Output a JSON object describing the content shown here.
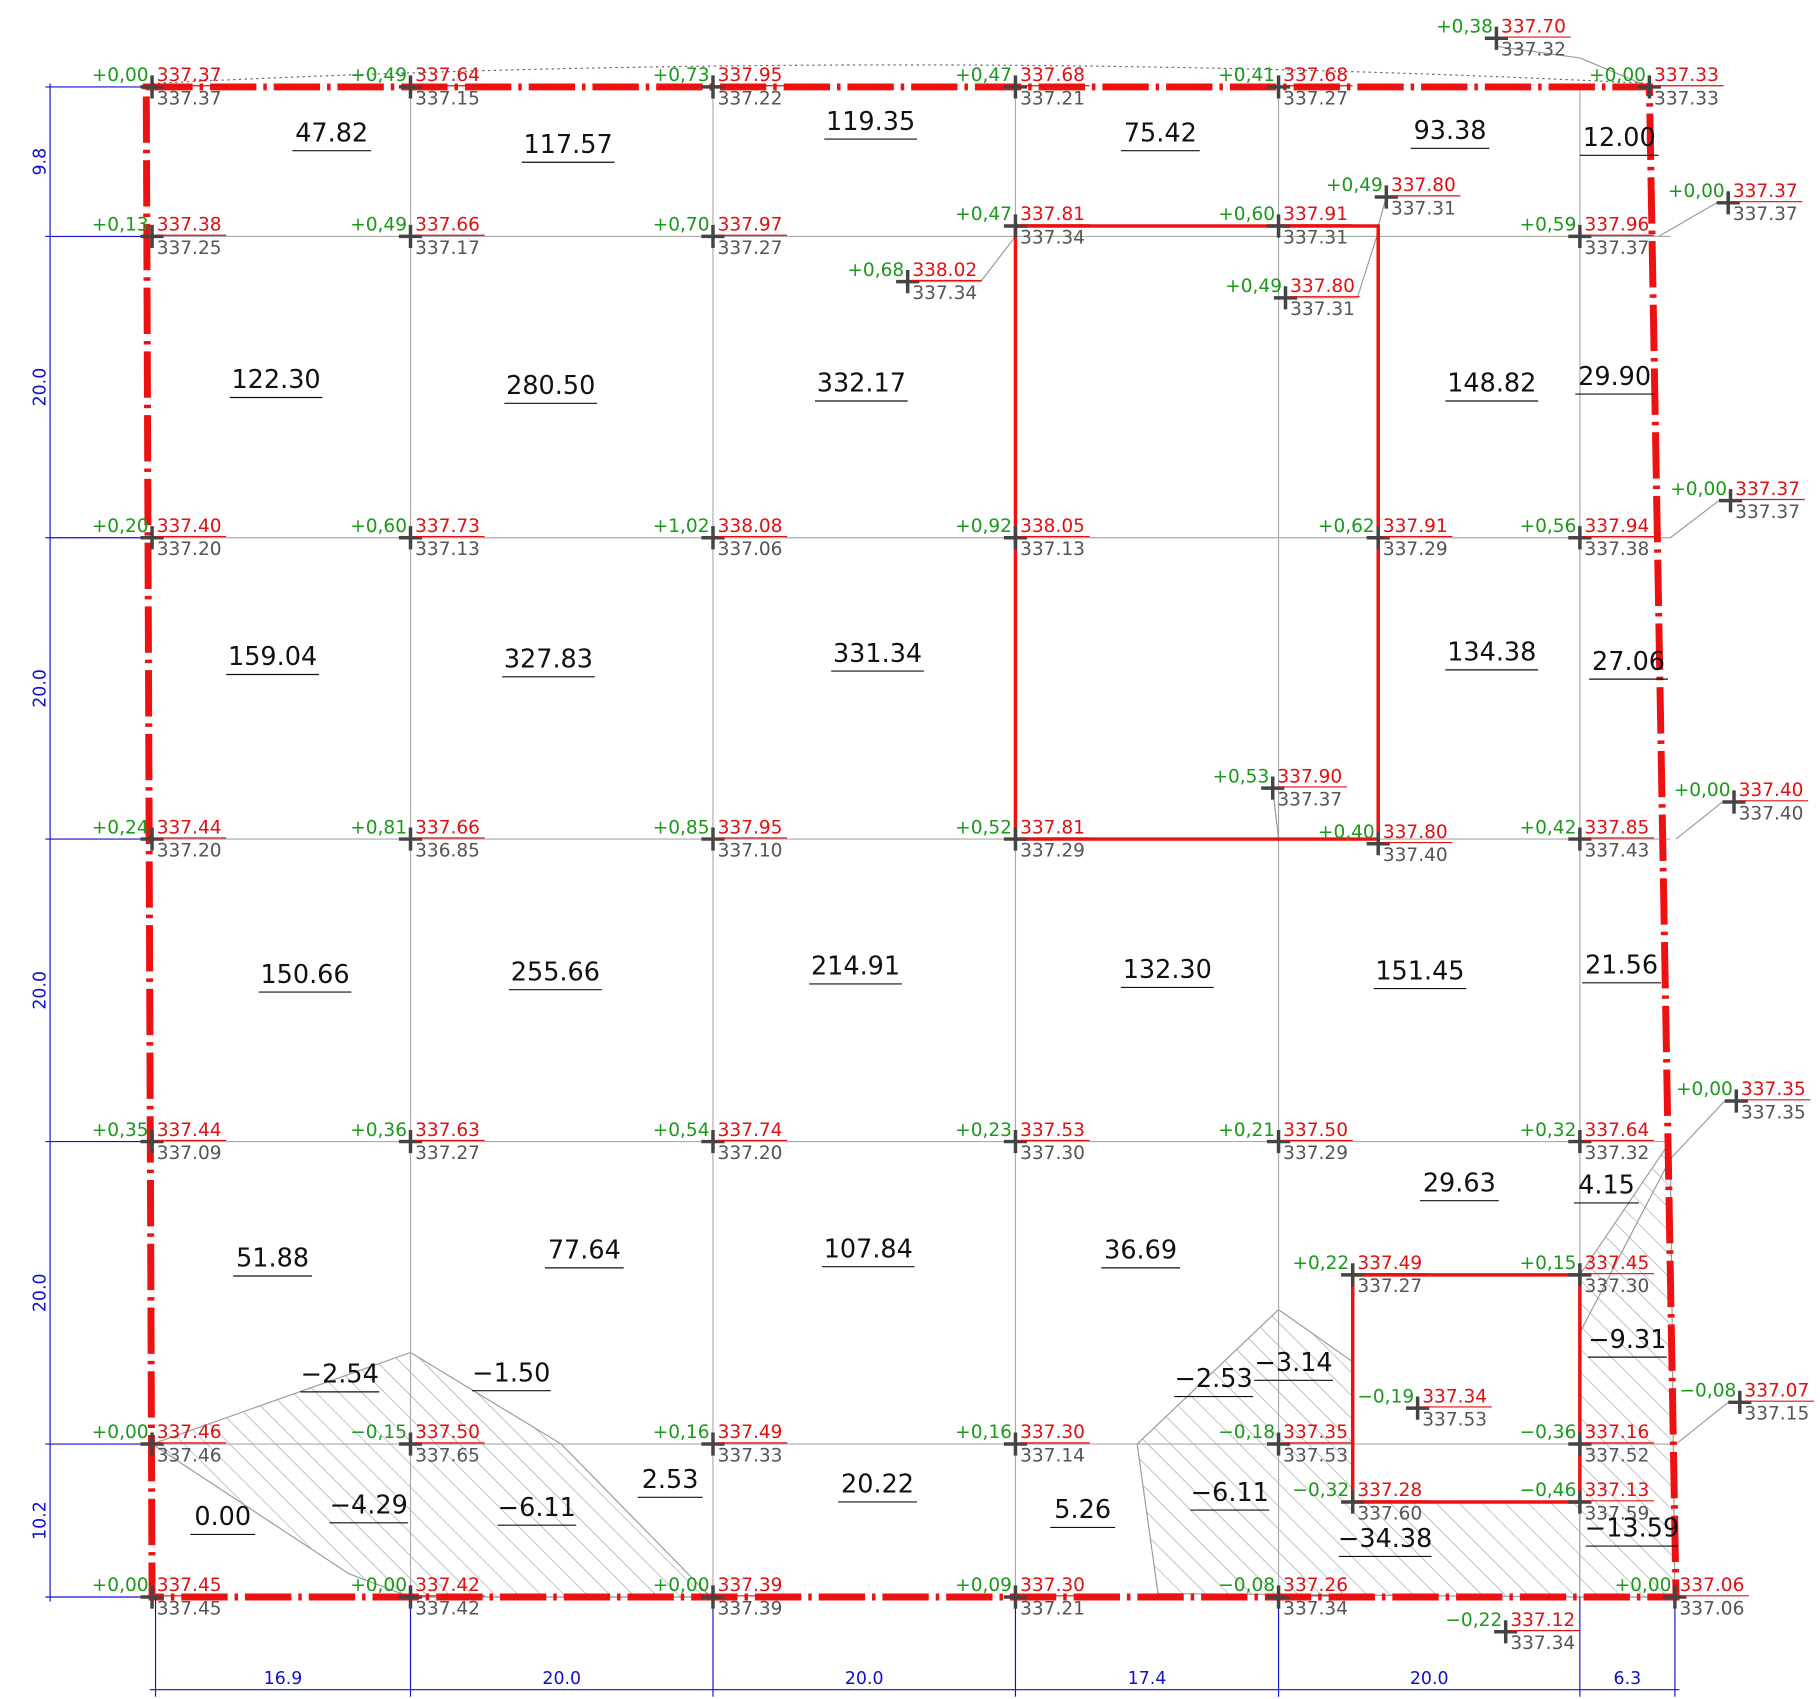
{
  "points": [
    {
      "delta": "+0,00",
      "design": "337.37",
      "existing": "337.37"
    },
    {
      "delta": "+0,49",
      "design": "337.64",
      "existing": "337.15"
    },
    {
      "delta": "+0,73",
      "design": "337.95",
      "existing": "337.22"
    },
    {
      "delta": "+0,47",
      "design": "337.68",
      "existing": "337.21"
    },
    {
      "delta": "+0,41",
      "design": "337.68",
      "existing": "337.27"
    },
    {
      "delta": "+0,00",
      "design": "337.33",
      "existing": "337.33"
    },
    {
      "delta": "+0,38",
      "design": "337.70",
      "existing": "337.32"
    },
    {
      "delta": "+0,13",
      "design": "337.38",
      "existing": "337.25"
    },
    {
      "delta": "+0,49",
      "design": "337.66",
      "existing": "337.17"
    },
    {
      "delta": "+0,70",
      "design": "337.97",
      "existing": "337.27"
    },
    {
      "delta": "+0,47",
      "design": "337.81",
      "existing": "337.34"
    },
    {
      "delta": "+0,60",
      "design": "337.91",
      "existing": "337.31"
    },
    {
      "delta": "+0,49",
      "design": "337.80",
      "existing": "337.31"
    },
    {
      "delta": "+0,59",
      "design": "337.96",
      "existing": "337.37"
    },
    {
      "delta": "+0,00",
      "design": "337.37",
      "existing": "337.37"
    },
    {
      "delta": "+0,68",
      "design": "338.02",
      "existing": "337.34"
    },
    {
      "delta": "+0,49",
      "design": "337.80",
      "existing": "337.31"
    },
    {
      "delta": "+0,20",
      "design": "337.40",
      "existing": "337.20"
    },
    {
      "delta": "+0,60",
      "design": "337.73",
      "existing": "337.13"
    },
    {
      "delta": "+1,02",
      "design": "338.08",
      "existing": "337.06"
    },
    {
      "delta": "+0,92",
      "design": "338.05",
      "existing": "337.13"
    },
    {
      "delta": "+0,62",
      "design": "337.91",
      "existing": "337.29"
    },
    {
      "delta": "+0,56",
      "design": "337.94",
      "existing": "337.38"
    },
    {
      "delta": "+0,00",
      "design": "337.37",
      "existing": "337.37"
    },
    {
      "delta": "+0,53",
      "design": "337.90",
      "existing": "337.37"
    },
    {
      "delta": "+0,24",
      "design": "337.44",
      "existing": "337.20"
    },
    {
      "delta": "+0,81",
      "design": "337.66",
      "existing": "336.85"
    },
    {
      "delta": "+0,85",
      "design": "337.95",
      "existing": "337.10"
    },
    {
      "delta": "+0,52",
      "design": "337.81",
      "existing": "337.29"
    },
    {
      "delta": "+0,40",
      "design": "337.80",
      "existing": "337.40"
    },
    {
      "delta": "+0,42",
      "design": "337.85",
      "existing": "337.43"
    },
    {
      "delta": "+0,00",
      "design": "337.40",
      "existing": "337.40"
    },
    {
      "delta": "+0,35",
      "design": "337.44",
      "existing": "337.09"
    },
    {
      "delta": "+0,36",
      "design": "337.63",
      "existing": "337.27"
    },
    {
      "delta": "+0,54",
      "design": "337.74",
      "existing": "337.20"
    },
    {
      "delta": "+0,23",
      "design": "337.53",
      "existing": "337.30"
    },
    {
      "delta": "+0,21",
      "design": "337.50",
      "existing": "337.29"
    },
    {
      "delta": "+0,32",
      "design": "337.64",
      "existing": "337.32"
    },
    {
      "delta": "+0,00",
      "design": "337.35",
      "existing": "337.35"
    },
    {
      "delta": "+0,22",
      "design": "337.49",
      "existing": "337.27"
    },
    {
      "delta": "+0,15",
      "design": "337.45",
      "existing": "337.30"
    },
    {
      "delta": "−0,19",
      "design": "337.34",
      "existing": "337.53"
    },
    {
      "delta": "−0,08",
      "design": "337.07",
      "existing": "337.15"
    },
    {
      "delta": "+0,00",
      "design": "337.46",
      "existing": "337.46"
    },
    {
      "delta": "−0,15",
      "design": "337.50",
      "existing": "337.65"
    },
    {
      "delta": "+0,16",
      "design": "337.49",
      "existing": "337.33"
    },
    {
      "delta": "+0,16",
      "design": "337.30",
      "existing": "337.14"
    },
    {
      "delta": "−0,18",
      "design": "337.35",
      "existing": "337.53"
    },
    {
      "delta": "−0,36",
      "design": "337.16",
      "existing": "337.52"
    },
    {
      "delta": "−0,32",
      "design": "337.28",
      "existing": "337.60"
    },
    {
      "delta": "−0,46",
      "design": "337.13",
      "existing": "337.59"
    },
    {
      "delta": "+0,00",
      "design": "337.45",
      "existing": "337.45"
    },
    {
      "delta": "+0,00",
      "design": "337.42",
      "existing": "337.42"
    },
    {
      "delta": "+0,00",
      "design": "337.39",
      "existing": "337.39"
    },
    {
      "delta": "+0,09",
      "design": "337.30",
      "existing": "337.21"
    },
    {
      "delta": "−0,08",
      "design": "337.26",
      "existing": "337.34"
    },
    {
      "delta": "+0,00",
      "design": "337.06",
      "existing": "337.06"
    },
    {
      "delta": "−0,22",
      "design": "337.12",
      "existing": "337.34"
    }
  ],
  "areas": [
    "47.82",
    "117.57",
    "119.35",
    "75.42",
    "93.38",
    "12.00",
    "122.30",
    "280.50",
    "332.17",
    "148.82",
    "29.90",
    "159.04",
    "327.83",
    "331.34",
    "134.38",
    "27.06",
    "150.66",
    "255.66",
    "214.91",
    "132.30",
    "151.45",
    "21.56",
    "29.63",
    "4.15",
    "51.88",
    "77.64",
    "107.84",
    "36.69",
    "−2.54",
    "−1.50",
    "−2.53",
    "−3.14",
    "−9.31",
    "−4.29",
    "−6.11",
    "2.53",
    "20.22",
    "5.26",
    "−6.11",
    "−34.38",
    "−13.59",
    "0.00"
  ],
  "dimensions": {
    "left": [
      "9.8",
      "20.0",
      "20.0",
      "20.0",
      "20.0",
      "10.2"
    ],
    "bottom": [
      "16.9",
      "20.0",
      "20.0",
      "17.4",
      "20.0",
      "6.3"
    ]
  }
}
